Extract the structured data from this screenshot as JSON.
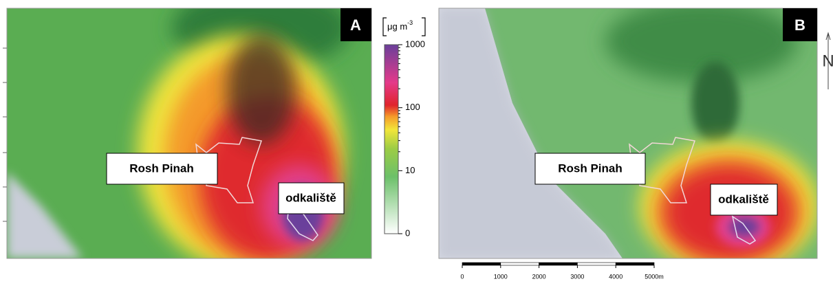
{
  "panels": [
    {
      "label": "A",
      "places": [
        {
          "label": "Rosh Pinah"
        },
        {
          "label": "odkaliště"
        }
      ]
    },
    {
      "label": "B",
      "places": [
        {
          "label": "Rosh Pinah"
        },
        {
          "label": "odkaliště"
        }
      ]
    }
  ],
  "colorbar": {
    "unit": "μg m",
    "unit_exponent": "-3",
    "clim": [
      0,
      1000
    ],
    "log_scale": true,
    "ticks": [
      0,
      10,
      100,
      1000
    ]
  },
  "scale_bar": {
    "xlim": [
      0,
      5000
    ],
    "ticks": [
      0,
      1000,
      2000,
      3000,
      4000,
      {
        "value": 5000,
        "label": "5000m"
      }
    ]
  },
  "north": "N"
}
